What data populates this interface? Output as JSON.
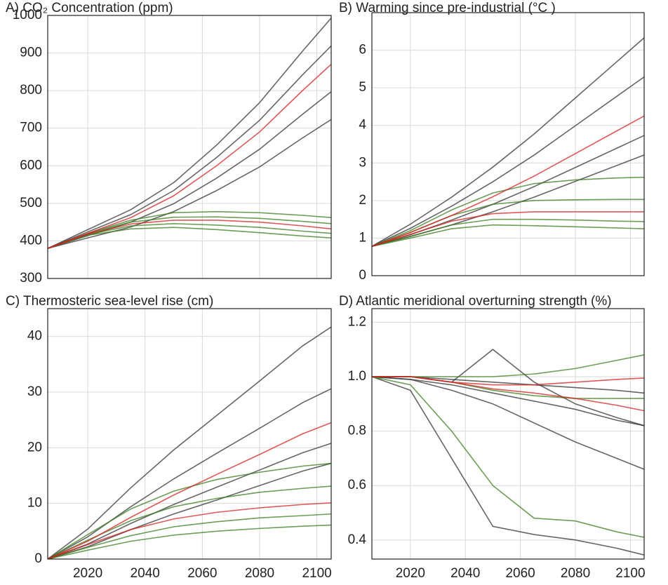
{
  "chart_data": [
    {
      "type": "line",
      "title": "A) CO₂ Concentration (ppm)",
      "x": [
        2006,
        2020,
        2035,
        2050,
        2065,
        2080,
        2095,
        2105
      ],
      "xlim": [
        2006,
        2105
      ],
      "xticks": [
        2020,
        2040,
        2060,
        2080,
        2100
      ],
      "xtick_labels": false,
      "ylim": [
        300,
        1000
      ],
      "yticks": [
        300,
        400,
        500,
        600,
        700,
        800,
        900,
        1000
      ],
      "grid": true,
      "series": [
        {
          "color": "#333333",
          "values": [
            380,
            430,
            483,
            555,
            655,
            768,
            905,
            993
          ]
        },
        {
          "color": "#333333",
          "values": [
            380,
            424,
            470,
            534,
            622,
            721,
            842,
            919
          ]
        },
        {
          "color": "#333333",
          "values": [
            380,
            414,
            450,
            499,
            567,
            644,
            737,
            797
          ]
        },
        {
          "color": "#333333",
          "values": [
            380,
            408,
            437,
            478,
            534,
            597,
            674,
            723
          ]
        },
        {
          "color": "#3a7d1e",
          "values": [
            380,
            420,
            455,
            475,
            478,
            475,
            468,
            462
          ]
        },
        {
          "color": "#3a7d1e",
          "values": [
            380,
            419,
            450,
            463,
            464,
            460,
            452,
            446
          ]
        },
        {
          "color": "#3a7d1e",
          "values": [
            380,
            417,
            440,
            446,
            442,
            436,
            426,
            420
          ]
        },
        {
          "color": "#3a7d1e",
          "values": [
            380,
            415,
            432,
            436,
            430,
            422,
            413,
            408
          ]
        },
        {
          "color": "#d62020",
          "values": [
            380,
            420,
            462,
            520,
            600,
            690,
            800,
            870
          ]
        },
        {
          "color": "#d62020",
          "values": [
            380,
            418,
            445,
            455,
            455,
            450,
            440,
            432
          ]
        }
      ]
    },
    {
      "type": "line",
      "title": "B) Warming since pre-industrial (°C )",
      "x": [
        2006,
        2020,
        2035,
        2050,
        2065,
        2080,
        2095,
        2105
      ],
      "xlim": [
        2006,
        2105
      ],
      "xticks": [
        2020,
        2040,
        2060,
        2080,
        2100
      ],
      "xtick_labels": false,
      "ylim": [
        0,
        7
      ],
      "yticks": [
        0,
        1,
        2,
        3,
        4,
        5,
        6
      ],
      "grid": true,
      "series": [
        {
          "color": "#333333",
          "values": [
            0.78,
            1.37,
            2.09,
            2.89,
            3.77,
            4.73,
            5.69,
            6.33
          ]
        },
        {
          "color": "#333333",
          "values": [
            0.78,
            1.26,
            1.85,
            2.5,
            3.21,
            3.99,
            4.77,
            5.29
          ]
        },
        {
          "color": "#333333",
          "values": [
            0.78,
            1.09,
            1.48,
            1.9,
            2.37,
            2.88,
            3.39,
            3.73
          ]
        },
        {
          "color": "#333333",
          "values": [
            0.78,
            1.04,
            1.35,
            1.7,
            2.09,
            2.51,
            2.93,
            3.21
          ]
        },
        {
          "color": "#3a7d1e",
          "values": [
            0.78,
            1.2,
            1.75,
            2.2,
            2.45,
            2.55,
            2.6,
            2.62
          ]
        },
        {
          "color": "#3a7d1e",
          "values": [
            0.78,
            1.15,
            1.6,
            1.9,
            2.0,
            2.02,
            2.03,
            2.03
          ]
        },
        {
          "color": "#3a7d1e",
          "values": [
            0.78,
            1.05,
            1.35,
            1.5,
            1.5,
            1.48,
            1.45,
            1.44
          ]
        },
        {
          "color": "#3a7d1e",
          "values": [
            0.78,
            1.0,
            1.25,
            1.35,
            1.33,
            1.3,
            1.27,
            1.25
          ]
        },
        {
          "color": "#d62020",
          "values": [
            0.78,
            1.15,
            1.6,
            2.1,
            2.65,
            3.25,
            3.85,
            4.25
          ]
        },
        {
          "color": "#d62020",
          "values": [
            0.78,
            1.1,
            1.45,
            1.65,
            1.7,
            1.7,
            1.7,
            1.7
          ]
        }
      ]
    },
    {
      "type": "line",
      "title": "C) Thermosteric sea-level rise (cm)",
      "x": [
        2006,
        2020,
        2035,
        2050,
        2065,
        2080,
        2095,
        2105
      ],
      "xlim": [
        2006,
        2105
      ],
      "xticks": [
        2020,
        2040,
        2060,
        2080,
        2100
      ],
      "xtick_labels": true,
      "ylim": [
        0,
        45
      ],
      "yticks": [
        0,
        10,
        20,
        30,
        40
      ],
      "grid": true,
      "series": [
        {
          "color": "#333333",
          "values": [
            0,
            5.4,
            12.8,
            19.6,
            25.8,
            32.0,
            38.3,
            41.7
          ]
        },
        {
          "color": "#333333",
          "values": [
            0,
            4.0,
            9.4,
            14.4,
            19.0,
            23.5,
            28.1,
            30.6
          ]
        },
        {
          "color": "#333333",
          "values": [
            0,
            2.7,
            6.4,
            9.8,
            12.9,
            16.0,
            19.1,
            20.8
          ]
        },
        {
          "color": "#333333",
          "values": [
            0,
            2.2,
            5.3,
            8.1,
            10.6,
            13.2,
            15.8,
            17.2
          ]
        },
        {
          "color": "#3a7d1e",
          "values": [
            0,
            4.4,
            9.0,
            12.2,
            14.3,
            15.6,
            16.7,
            17.2
          ]
        },
        {
          "color": "#3a7d1e",
          "values": [
            0,
            3.4,
            6.9,
            9.4,
            10.9,
            12.0,
            12.7,
            13.1
          ]
        },
        {
          "color": "#3a7d1e",
          "values": [
            0,
            2.1,
            4.2,
            5.8,
            6.7,
            7.4,
            7.8,
            8.1
          ]
        },
        {
          "color": "#3a7d1e",
          "values": [
            0,
            1.6,
            3.2,
            4.3,
            5.0,
            5.5,
            5.9,
            6.1
          ]
        },
        {
          "color": "#d62020",
          "values": [
            0,
            3.2,
            7.5,
            11.5,
            15.2,
            18.8,
            22.5,
            24.5
          ]
        },
        {
          "color": "#d62020",
          "values": [
            0,
            2.6,
            5.3,
            7.2,
            8.4,
            9.2,
            9.8,
            10.1
          ]
        }
      ]
    },
    {
      "type": "line",
      "title": "D) Atlantic meridional overturning strength (%)",
      "x": [
        2006,
        2020,
        2035,
        2050,
        2065,
        2080,
        2095,
        2105
      ],
      "xlim": [
        2006,
        2105
      ],
      "xticks": [
        2020,
        2040,
        2060,
        2080,
        2100
      ],
      "xtick_labels": true,
      "ylim": [
        0.33,
        1.25
      ],
      "yticks": [
        0.4,
        0.6,
        0.8,
        {
          "value": 1,
          "label": "1.0"
        },
        1.2
      ],
      "grid": true,
      "series": [
        {
          "color": "#333333",
          "values": [
            1,
            1.0,
            0.99,
            0.98,
            0.97,
            0.96,
            0.95,
            0.94
          ]
        },
        {
          "color": "#333333",
          "values": [
            1,
            0.99,
            0.97,
            0.94,
            0.91,
            0.88,
            0.84,
            0.82
          ]
        },
        {
          "color": "#333333",
          "values": [
            1,
            0.99,
            0.95,
            0.9,
            0.83,
            0.76,
            0.7,
            0.66
          ]
        },
        {
          "color": "#333333",
          "values": [
            1,
            1.0,
            0.98,
            1.1,
            0.98,
            0.9,
            0.85,
            0.82
          ]
        },
        {
          "color": "#333333",
          "values": [
            1,
            0.95,
            0.7,
            0.45,
            0.42,
            0.4,
            0.37,
            0.345
          ]
        },
        {
          "color": "#3a7d1e",
          "values": [
            1,
            1.0,
            1.0,
            1.0,
            1.01,
            1.03,
            1.06,
            1.08
          ]
        },
        {
          "color": "#3a7d1e",
          "values": [
            1,
            1.0,
            0.98,
            0.95,
            0.93,
            0.92,
            0.92,
            0.92
          ]
        },
        {
          "color": "#3a7d1e",
          "values": [
            1,
            0.97,
            0.8,
            0.6,
            0.48,
            0.47,
            0.43,
            0.41
          ]
        },
        {
          "color": "#d62020",
          "values": [
            1,
            1.0,
            0.98,
            0.955,
            0.94,
            0.92,
            0.895,
            0.875
          ]
        },
        {
          "color": "#d62020",
          "values": [
            1,
            1.0,
            0.98,
            0.97,
            0.97,
            0.98,
            0.99,
            0.995
          ]
        }
      ]
    }
  ]
}
